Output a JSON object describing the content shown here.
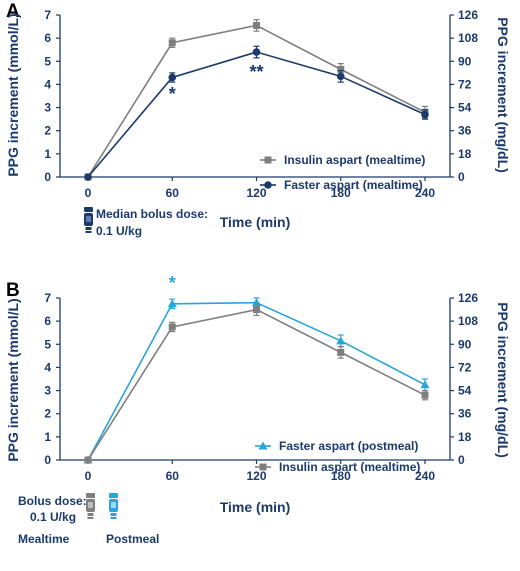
{
  "chart_data": [
    {
      "panel": "A",
      "type": "line",
      "xlabel": "Time (min)",
      "ylabel": "PPG increment (mmol/L)",
      "y2label": "PPG increment (mg/dL)",
      "x": [
        0,
        60,
        120,
        180,
        240
      ],
      "xticks": [
        "0",
        "60",
        "120",
        "180",
        "240"
      ],
      "ylim": [
        0,
        7
      ],
      "yticks": [
        "0",
        "1",
        "2",
        "3",
        "4",
        "5",
        "6",
        "7"
      ],
      "y2lim": [
        0,
        126
      ],
      "y2ticks": [
        "0",
        "18",
        "36",
        "54",
        "72",
        "90",
        "108",
        "126"
      ],
      "legend_position": "bottom-right",
      "series": [
        {
          "name": "Insulin aspart (mealtime)",
          "color": "#7f7f7f",
          "marker": "square",
          "values": [
            0.0,
            5.8,
            6.55,
            4.65,
            2.8
          ],
          "err": [
            0.0,
            0.2,
            0.25,
            0.25,
            0.25
          ]
        },
        {
          "name": "Faster aspart (mealtime)",
          "color": "#1b3a6b",
          "marker": "circle",
          "values": [
            0.0,
            4.3,
            5.4,
            4.35,
            2.7
          ],
          "err": [
            0.0,
            0.2,
            0.25,
            0.25,
            0.2
          ]
        }
      ],
      "annotations": [
        {
          "x": 60,
          "text": "*",
          "color": "#1b3a6b",
          "position": "below"
        },
        {
          "x": 120,
          "text": "**",
          "color": "#1b3a6b",
          "position": "below"
        }
      ],
      "note": {
        "line1": "Median bolus dose:",
        "line2": "0.1 U/kg",
        "icon": "insulin-pen-icon"
      }
    },
    {
      "panel": "B",
      "type": "line",
      "xlabel": "Time (min)",
      "ylabel": "PPG increment (mmol/L)",
      "y2label": "PPG increment (mg/dL)",
      "x": [
        0,
        60,
        120,
        180,
        240
      ],
      "xticks": [
        "0",
        "60",
        "120",
        "180",
        "240"
      ],
      "ylim": [
        0,
        7
      ],
      "yticks": [
        "0",
        "1",
        "2",
        "3",
        "4",
        "5",
        "6",
        "7"
      ],
      "y2lim": [
        0,
        126
      ],
      "y2ticks": [
        "0",
        "18",
        "36",
        "54",
        "72",
        "90",
        "108",
        "126"
      ],
      "legend_position": "bottom-right",
      "series": [
        {
          "name": "Faster aspart (postmeal)",
          "color": "#2aa4dc",
          "marker": "triangle",
          "values": [
            0.0,
            6.75,
            6.8,
            5.15,
            3.25
          ],
          "err": [
            0.0,
            0.2,
            0.2,
            0.25,
            0.25
          ]
        },
        {
          "name": "Insulin aspart (mealtime)",
          "color": "#7f7f7f",
          "marker": "square",
          "values": [
            0.0,
            5.75,
            6.5,
            4.65,
            2.8
          ],
          "err": [
            0.0,
            0.2,
            0.25,
            0.25,
            0.2
          ]
        }
      ],
      "annotations": [
        {
          "x": 60,
          "text": "*",
          "color": "#2aa4dc",
          "position": "above"
        }
      ],
      "note": {
        "line1": "Bolus dose:",
        "line2": "0.1 U/kg",
        "label_left": "Mealtime",
        "label_right": "Postmeal",
        "icon_left": "insulin-pen-grey-icon",
        "icon_right": "insulin-pen-blue-icon"
      }
    }
  ],
  "colors": {
    "axis": "#1b3a6b",
    "text": "#1b3a6b",
    "letter": "#000000"
  }
}
